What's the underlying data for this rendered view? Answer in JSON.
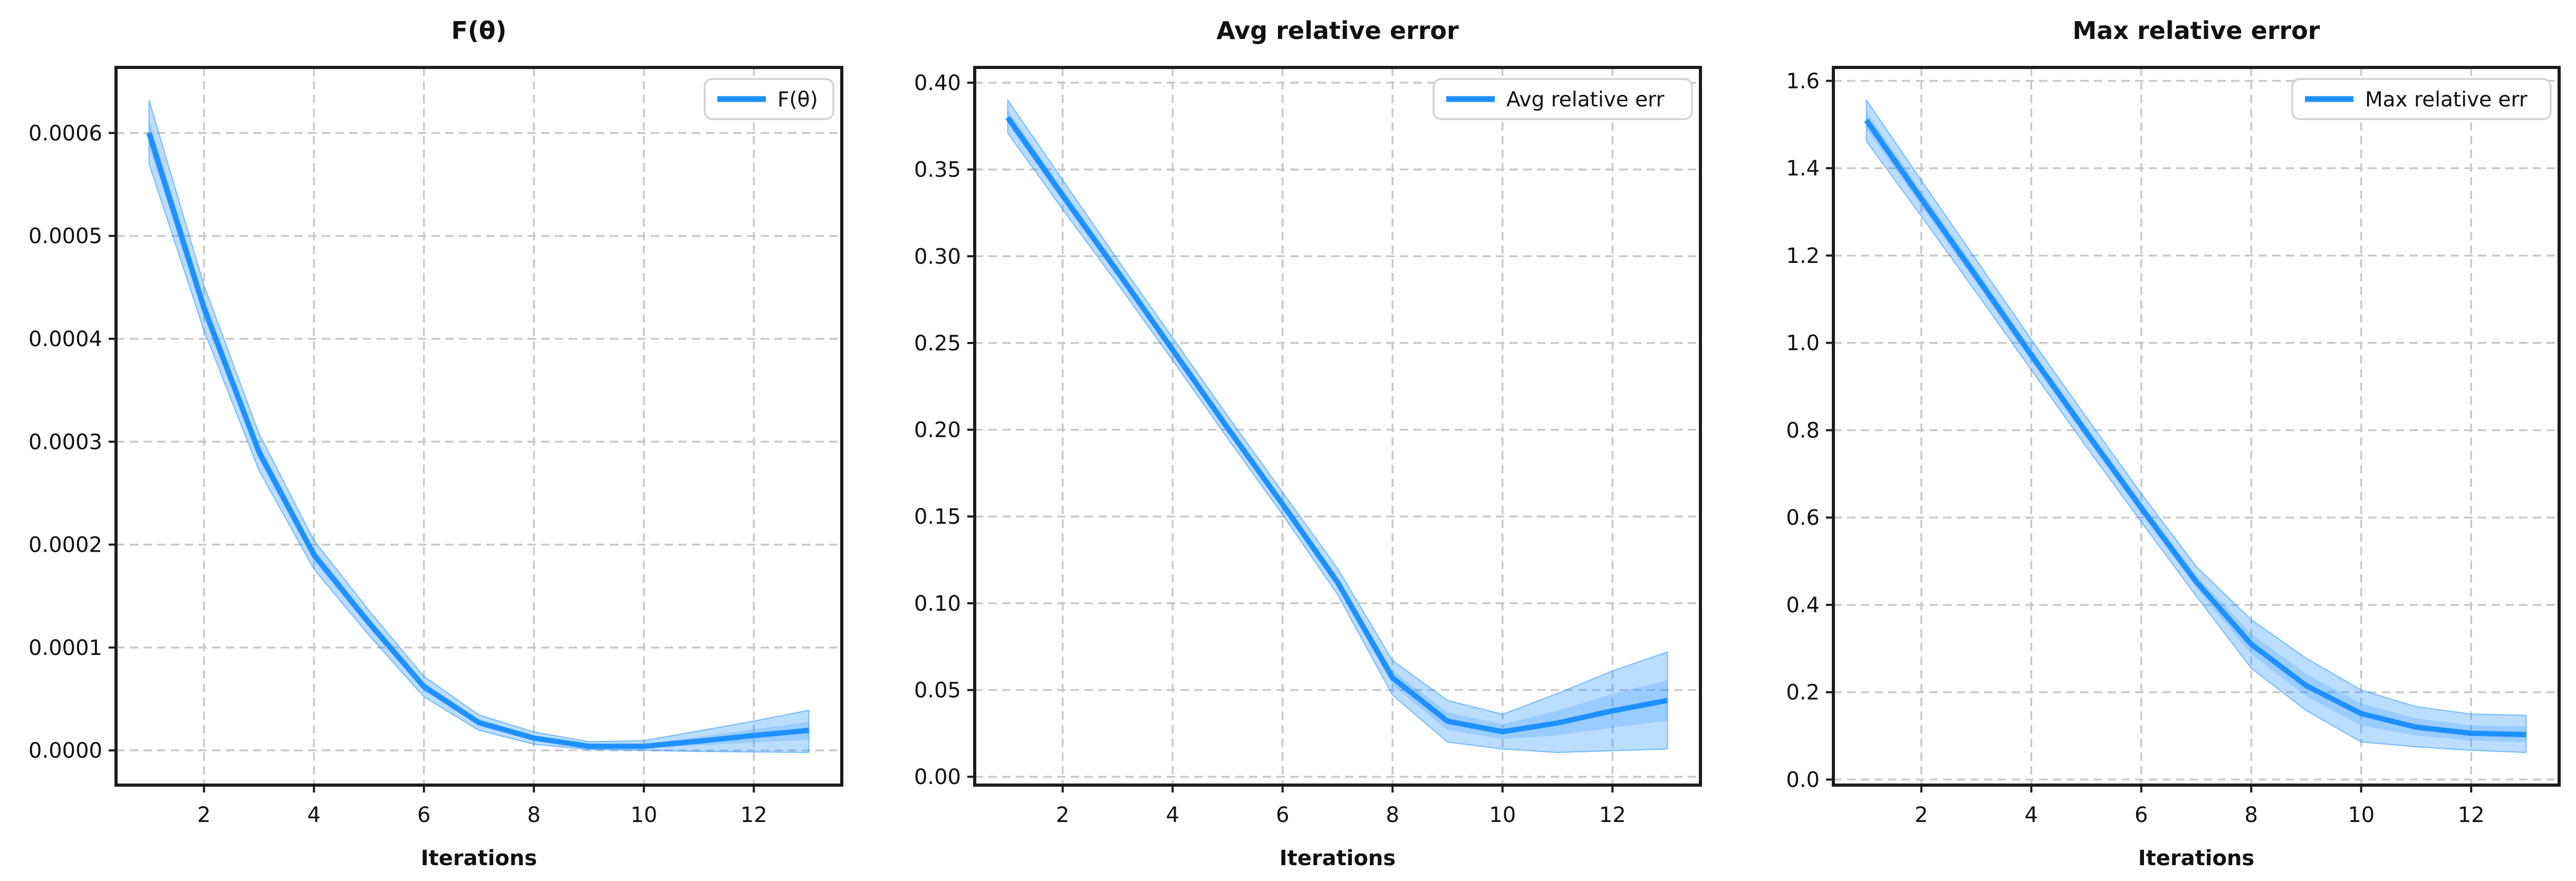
{
  "figure": {
    "background": "#ffffff",
    "accent_color": "#1e90ff",
    "band_fill": "rgba(30,144,255,0.30)",
    "band_inner_fill": "rgba(30,144,255,0.22)",
    "band_edge": "rgba(30,144,255,0.55)",
    "grid_color": "#c9c9c9",
    "spine_color": "#1c1c1c",
    "text_color": "#111111",
    "legend_border": "#d2d2d2",
    "legend_background": "#ffffff"
  },
  "chart_data": [
    {
      "type": "line",
      "title": "F(θ)",
      "xlabel": "Iterations",
      "ylabel": "",
      "legend_label": "F(θ)",
      "legend_position": "upper right",
      "grid": true,
      "x": [
        1,
        2,
        3,
        4,
        5,
        6,
        7,
        8,
        9,
        10,
        11,
        12,
        13
      ],
      "series": [
        {
          "name": "F(θ)",
          "values": [
            0.0006,
            0.00043,
            0.00029,
            0.00019,
            0.000124,
            6.2e-05,
            2.7e-05,
            1.2e-05,
            4e-06,
            4e-06,
            9e-06,
            1.45e-05,
            1.95e-05
          ],
          "lower": [
            0.00057,
            0.000408,
            0.000272,
            0.000176,
            0.000112,
            5.2e-05,
            1.95e-05,
            6e-06,
            8e-07,
            0.0,
            -1e-06,
            -1.5e-06,
            -2e-06
          ],
          "upper": [
            0.000632,
            0.000452,
            0.000308,
            0.000204,
            0.000136,
            7.2e-05,
            3.45e-05,
            1.8e-05,
            8.5e-06,
            9.5e-06,
            1.9e-05,
            2.85e-05,
            3.9e-05
          ]
        }
      ],
      "xlim": [
        0.4,
        13.6
      ],
      "xticks": [
        2,
        4,
        6,
        8,
        10,
        12
      ],
      "yticks": [
        0.0,
        0.0001,
        0.0002,
        0.0003,
        0.0004,
        0.0005,
        0.0006
      ],
      "ytick_decimals": 4
    },
    {
      "type": "line",
      "title": "Avg relative error",
      "xlabel": "Iterations",
      "ylabel": "",
      "legend_label": "Avg relative err",
      "legend_position": "upper right",
      "grid": true,
      "x": [
        1,
        2,
        3,
        4,
        5,
        6,
        7,
        8,
        9,
        10,
        11,
        12,
        13
      ],
      "series": [
        {
          "name": "Avg relative err",
          "values": [
            0.38,
            0.335,
            0.291,
            0.246,
            0.201,
            0.157,
            0.112,
            0.057,
            0.032,
            0.026,
            0.031,
            0.038,
            0.044
          ],
          "lower": [
            0.371,
            0.327,
            0.284,
            0.24,
            0.195,
            0.151,
            0.105,
            0.047,
            0.02,
            0.016,
            0.014,
            0.015,
            0.016
          ],
          "upper": [
            0.39,
            0.344,
            0.298,
            0.253,
            0.208,
            0.164,
            0.12,
            0.067,
            0.044,
            0.036,
            0.048,
            0.061,
            0.072
          ]
        }
      ],
      "xlim": [
        0.4,
        13.6
      ],
      "xticks": [
        2,
        4,
        6,
        8,
        10,
        12
      ],
      "yticks": [
        0.0,
        0.05,
        0.1,
        0.15,
        0.2,
        0.25,
        0.3,
        0.35,
        0.4
      ],
      "ytick_decimals": 2
    },
    {
      "type": "line",
      "title": "Max relative error",
      "xlabel": "Iterations",
      "ylabel": "",
      "legend_label": "Max relative err",
      "legend_position": "upper right",
      "grid": true,
      "x": [
        1,
        2,
        3,
        4,
        5,
        6,
        7,
        8,
        9,
        10,
        11,
        12,
        13
      ],
      "series": [
        {
          "name": "Max relative err",
          "values": [
            1.51,
            1.33,
            1.152,
            0.972,
            0.795,
            0.622,
            0.453,
            0.31,
            0.215,
            0.151,
            0.12,
            0.106,
            0.103
          ],
          "lower": [
            1.462,
            1.29,
            1.115,
            0.938,
            0.762,
            0.59,
            0.42,
            0.255,
            0.158,
            0.086,
            0.075,
            0.067,
            0.062
          ],
          "upper": [
            1.556,
            1.372,
            1.19,
            1.008,
            0.83,
            0.655,
            0.488,
            0.366,
            0.278,
            0.205,
            0.167,
            0.15,
            0.147
          ]
        }
      ],
      "xlim": [
        0.4,
        13.6
      ],
      "xticks": [
        2,
        4,
        6,
        8,
        10,
        12
      ],
      "yticks": [
        0.0,
        0.2,
        0.4,
        0.6,
        0.8,
        1.0,
        1.2,
        1.4,
        1.6
      ],
      "ytick_decimals": 1
    }
  ]
}
